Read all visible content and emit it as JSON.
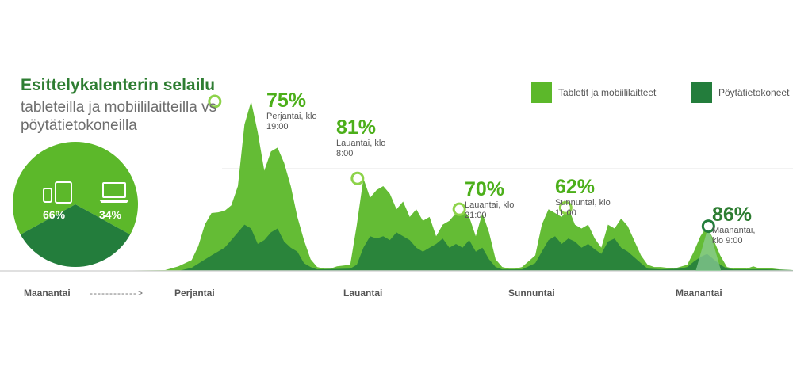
{
  "header": {
    "title": "Esittelykalenterin selailu",
    "subtitle": "tableteilla ja mobiililaitteilla vs pöytätietokoneilla"
  },
  "colors": {
    "mobile": "#5cb82a",
    "desktop": "#237d3c"
  },
  "chart_data": [
    {
      "type": "area",
      "title": "",
      "xlabel": "",
      "ylabel": "",
      "grid": false,
      "legend_position": "top-right",
      "x_tick_labels": [
        "Maanantai",
        "Perjantai",
        "Lauantai",
        "Sunnuntai",
        "Maanantai"
      ],
      "series": [
        {
          "name": "Tabletit ja mobiililaitteet",
          "values": [
            [
              0,
              0
            ],
            [
              20,
              0.5
            ],
            [
              25,
              1
            ],
            [
              27,
              6
            ],
            [
              29,
              14
            ],
            [
              30,
              32
            ],
            [
              31,
              60
            ],
            [
              32,
              75
            ],
            [
              33,
              76
            ],
            [
              34,
              78
            ],
            [
              35,
              85
            ],
            [
              36,
              110
            ],
            [
              37,
              190
            ],
            [
              38,
              220
            ],
            [
              39,
              180
            ],
            [
              40,
              130
            ],
            [
              41,
              155
            ],
            [
              42,
              160
            ],
            [
              43,
              140
            ],
            [
              44,
              110
            ],
            [
              45,
              70
            ],
            [
              46,
              40
            ],
            [
              47,
              15
            ],
            [
              48,
              5
            ],
            [
              49,
              3
            ],
            [
              50,
              3
            ],
            [
              51,
              6
            ],
            [
              53,
              8
            ],
            [
              54,
              60
            ],
            [
              55,
              120
            ],
            [
              56,
              95
            ],
            [
              57,
              105
            ],
            [
              58,
              110
            ],
            [
              59,
              100
            ],
            [
              60,
              80
            ],
            [
              61,
              90
            ],
            [
              62,
              70
            ],
            [
              63,
              80
            ],
            [
              64,
              65
            ],
            [
              65,
              70
            ],
            [
              66,
              45
            ],
            [
              67,
              60
            ],
            [
              68,
              65
            ],
            [
              69,
              75
            ],
            [
              70,
              80
            ],
            [
              71,
              70
            ],
            [
              72,
              45
            ],
            [
              73,
              75
            ],
            [
              74,
              50
            ],
            [
              75,
              15
            ],
            [
              76,
              5
            ],
            [
              77,
              3
            ],
            [
              78,
              3
            ],
            [
              79,
              5
            ],
            [
              81,
              20
            ],
            [
              82,
              60
            ],
            [
              83,
              80
            ],
            [
              84,
              75
            ],
            [
              85,
              70
            ],
            [
              86,
              82
            ],
            [
              87,
              60
            ],
            [
              88,
              55
            ],
            [
              89,
              60
            ],
            [
              90,
              42
            ],
            [
              91,
              30
            ],
            [
              92,
              60
            ],
            [
              93,
              55
            ],
            [
              94,
              68
            ],
            [
              95,
              58
            ],
            [
              97,
              20
            ],
            [
              98,
              8
            ],
            [
              99,
              5
            ],
            [
              100,
              5
            ],
            [
              102,
              3
            ],
            [
              104,
              8
            ],
            [
              105,
              25
            ],
            [
              106,
              45
            ],
            [
              107,
              58
            ],
            [
              108,
              40
            ],
            [
              109,
              20
            ],
            [
              110,
              5
            ],
            [
              111,
              3
            ],
            [
              112,
              4
            ],
            [
              113,
              3
            ],
            [
              114,
              6
            ],
            [
              115,
              3
            ],
            [
              116,
              4
            ],
            [
              118,
              2
            ],
            [
              120,
              1
            ]
          ]
        },
        {
          "name": "Pöytätietokoneet",
          "values": [
            [
              0,
              0
            ],
            [
              27,
              0
            ],
            [
              29,
              4
            ],
            [
              32,
              20
            ],
            [
              34,
              30
            ],
            [
              35,
              40
            ],
            [
              36,
              50
            ],
            [
              37,
              60
            ],
            [
              38,
              55
            ],
            [
              39,
              35
            ],
            [
              40,
              40
            ],
            [
              41,
              50
            ],
            [
              42,
              55
            ],
            [
              43,
              38
            ],
            [
              44,
              30
            ],
            [
              45,
              25
            ],
            [
              46,
              10
            ],
            [
              47,
              5
            ],
            [
              48,
              2
            ],
            [
              53,
              3
            ],
            [
              54,
              8
            ],
            [
              55,
              30
            ],
            [
              56,
              45
            ],
            [
              57,
              42
            ],
            [
              58,
              45
            ],
            [
              59,
              40
            ],
            [
              60,
              50
            ],
            [
              61,
              45
            ],
            [
              62,
              40
            ],
            [
              63,
              30
            ],
            [
              64,
              25
            ],
            [
              65,
              30
            ],
            [
              66,
              35
            ],
            [
              67,
              42
            ],
            [
              68,
              30
            ],
            [
              69,
              35
            ],
            [
              70,
              30
            ],
            [
              71,
              40
            ],
            [
              72,
              25
            ],
            [
              73,
              30
            ],
            [
              74,
              15
            ],
            [
              75,
              5
            ],
            [
              76,
              2
            ],
            [
              79,
              2
            ],
            [
              81,
              10
            ],
            [
              82,
              25
            ],
            [
              83,
              40
            ],
            [
              84,
              45
            ],
            [
              85,
              35
            ],
            [
              86,
              42
            ],
            [
              87,
              38
            ],
            [
              88,
              30
            ],
            [
              89,
              35
            ],
            [
              90,
              28
            ],
            [
              91,
              22
            ],
            [
              92,
              38
            ],
            [
              93,
              42
            ],
            [
              94,
              30
            ],
            [
              95,
              25
            ],
            [
              97,
              10
            ],
            [
              98,
              3
            ],
            [
              100,
              2
            ],
            [
              103,
              3
            ],
            [
              104,
              5
            ],
            [
              105,
              12
            ],
            [
              106,
              18
            ],
            [
              107,
              22
            ],
            [
              108,
              15
            ],
            [
              109,
              8
            ],
            [
              110,
              3
            ],
            [
              111,
              2
            ],
            [
              116,
              2
            ],
            [
              120,
              1
            ]
          ]
        }
      ],
      "annotations": [
        {
          "x": 32.5,
          "y": 220,
          "percent": "75%",
          "text": "Perjantai, klo 19:00",
          "dark": false
        },
        {
          "x": 54.1,
          "y": 120,
          "percent": "81%",
          "text": "Lauantai, klo 8:00",
          "dark": false
        },
        {
          "x": 69.5,
          "y": 80,
          "percent": "70%",
          "text": "Lauantai, klo 21:00",
          "dark": false
        },
        {
          "x": 85.6,
          "y": 82,
          "percent": "62%",
          "text": "Sunnuntai, klo 11:00",
          "dark": false
        },
        {
          "x": 107.2,
          "y": 58,
          "percent": "86%",
          "text": "Maanantai, klo 9:00",
          "dark": true
        }
      ]
    },
    {
      "type": "pie",
      "slices": [
        {
          "label": "66%",
          "value": 66,
          "device": "tablet-phone-icon"
        },
        {
          "label": "34%",
          "value": 34,
          "device": "laptop-icon"
        }
      ]
    }
  ],
  "dash_text": "------------>"
}
